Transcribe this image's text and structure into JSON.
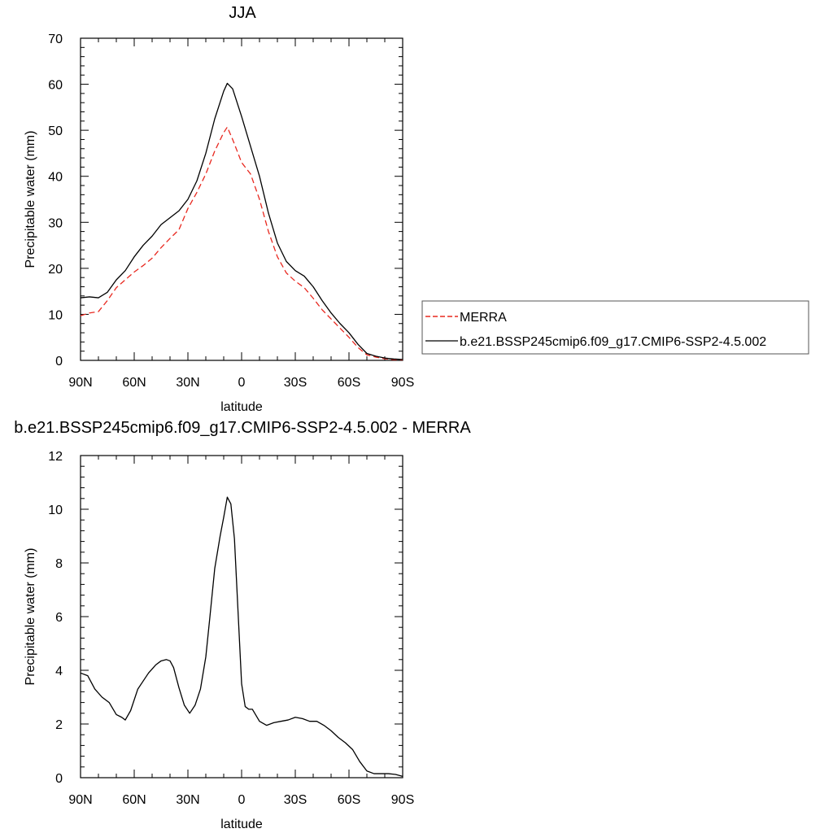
{
  "chart_data": [
    {
      "type": "line",
      "title": "JJA",
      "xlabel": "latitude",
      "ylabel": "Precipitable water (mm)",
      "xlim": [
        90,
        -90
      ],
      "ylim": [
        0,
        70
      ],
      "x_ticks": [
        90,
        60,
        30,
        0,
        -30,
        -60,
        -90
      ],
      "x_tick_labels": [
        "90N",
        "60N",
        "30N",
        "0",
        "30S",
        "60S",
        "90S"
      ],
      "y_ticks": [
        0,
        10,
        20,
        30,
        40,
        50,
        60,
        70
      ],
      "y_tick_labels": [
        "0",
        "10",
        "20",
        "30",
        "40",
        "50",
        "60",
        "70"
      ],
      "legend_position": "right",
      "series": [
        {
          "name": "MERRA",
          "color": "#e8281f",
          "dash": "dashed",
          "x": [
            90,
            85,
            80,
            75,
            70,
            65,
            60,
            55,
            50,
            45,
            40,
            35,
            30,
            25,
            20,
            15,
            10,
            8,
            5,
            0,
            -5,
            -10,
            -15,
            -20,
            -25,
            -30,
            -35,
            -40,
            -45,
            -50,
            -55,
            -60,
            -65,
            -70,
            -75,
            -80,
            -85,
            -90
          ],
          "values": [
            9.7,
            10.3,
            10.6,
            13,
            15.8,
            17.5,
            19.2,
            20.6,
            22.2,
            24.5,
            26.5,
            28.4,
            33,
            36.5,
            40.5,
            45.5,
            49.5,
            50.7,
            48,
            43,
            40.5,
            35,
            28,
            22.5,
            19,
            17.2,
            15.8,
            13.5,
            11,
            9,
            7,
            5,
            2.8,
            1.2,
            0.7,
            0.35,
            0.15,
            0.1
          ]
        },
        {
          "name": "b.e21.BSSP245cmip6.f09_g17.CMIP6-SSP2-4.5.002",
          "color": "#000000",
          "dash": "solid",
          "x": [
            90,
            85,
            80,
            75,
            70,
            65,
            60,
            55,
            50,
            45,
            40,
            35,
            30,
            25,
            20,
            15,
            10,
            8,
            5,
            0,
            -5,
            -10,
            -15,
            -20,
            -25,
            -30,
            -35,
            -40,
            -45,
            -50,
            -55,
            -60,
            -65,
            -70,
            -75,
            -80,
            -85,
            -90
          ],
          "values": [
            13.6,
            13.8,
            13.6,
            14.8,
            17.5,
            19.5,
            22.5,
            25,
            27,
            29.5,
            31,
            32.5,
            35,
            39,
            45,
            52.5,
            58.5,
            60.2,
            59,
            53,
            46.5,
            40,
            32,
            25.5,
            21.5,
            19.5,
            18.3,
            16,
            13,
            10.3,
            8,
            6,
            3.5,
            1.5,
            0.9,
            0.5,
            0.3,
            0.2
          ]
        }
      ]
    },
    {
      "type": "line",
      "title": "b.e21.BSSP245cmip6.f09_g17.CMIP6-SSP2-4.5.002 - MERRA",
      "xlabel": "latitude",
      "ylabel": "Precipitable water (mm)",
      "xlim": [
        90,
        -90
      ],
      "ylim": [
        0,
        12
      ],
      "x_ticks": [
        90,
        60,
        30,
        0,
        -30,
        -60,
        -90
      ],
      "x_tick_labels": [
        "90N",
        "60N",
        "30N",
        "0",
        "30S",
        "60S",
        "90S"
      ],
      "y_ticks": [
        0,
        2,
        4,
        6,
        8,
        10,
        12
      ],
      "y_tick_labels": [
        "0",
        "2",
        "4",
        "6",
        "8",
        "10",
        "12"
      ],
      "series": [
        {
          "color": "#000000",
          "dash": "solid",
          "x": [
            90,
            86,
            82,
            78,
            74,
            70,
            67,
            65,
            62,
            58,
            55,
            52,
            48,
            45,
            42,
            40,
            38,
            35,
            32,
            29,
            26,
            23,
            20,
            18,
            15,
            12,
            10,
            8,
            6,
            4,
            2,
            0,
            -2,
            -4,
            -6,
            -10,
            -14,
            -18,
            -22,
            -26,
            -30,
            -34,
            -38,
            -42,
            -46,
            -50,
            -54,
            -58,
            -62,
            -66,
            -70,
            -74,
            -78,
            -82,
            -86,
            -90
          ],
          "values": [
            3.9,
            3.8,
            3.3,
            3.0,
            2.8,
            2.35,
            2.25,
            2.15,
            2.5,
            3.3,
            3.6,
            3.9,
            4.2,
            4.35,
            4.4,
            4.35,
            4.1,
            3.35,
            2.7,
            2.4,
            2.7,
            3.3,
            4.5,
            5.8,
            7.8,
            9.0,
            9.7,
            10.45,
            10.2,
            8.9,
            6.2,
            3.5,
            2.65,
            2.55,
            2.55,
            2.1,
            1.95,
            2.05,
            2.1,
            2.15,
            2.25,
            2.2,
            2.1,
            2.1,
            1.95,
            1.75,
            1.5,
            1.3,
            1.05,
            0.6,
            0.25,
            0.15,
            0.15,
            0.15,
            0.12,
            0.05
          ]
        }
      ]
    }
  ]
}
